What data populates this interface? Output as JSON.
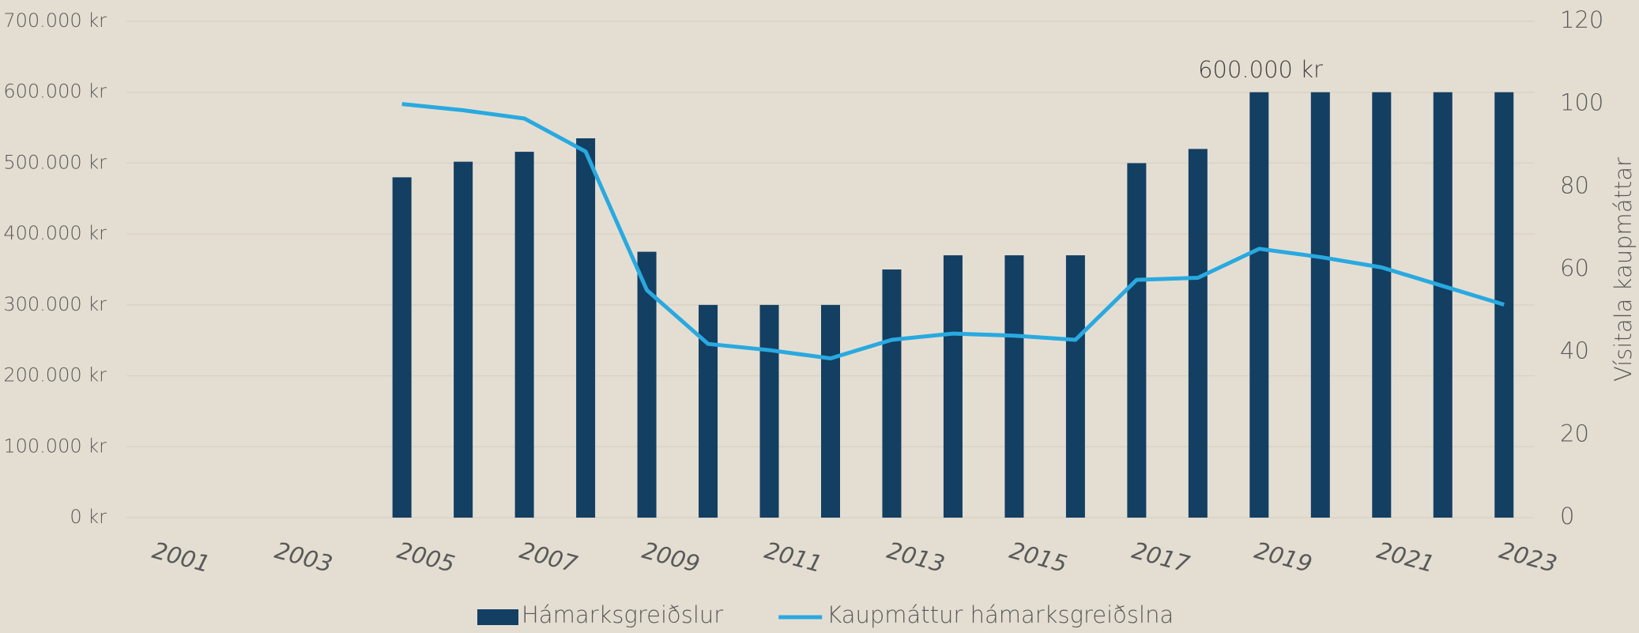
{
  "chart_data": {
    "type": "bar_line",
    "categories": [
      "2001",
      null,
      "2003",
      null,
      "2005",
      null,
      "2007",
      null,
      "2009",
      null,
      "2011",
      null,
      "2013",
      null,
      "2015",
      null,
      "2017",
      null,
      "2019",
      null,
      "2021",
      null,
      "2023"
    ],
    "series": [
      {
        "name": "Hámarksgreiðslur",
        "type": "bar",
        "color": "#133f63",
        "values": [
          null,
          null,
          null,
          null,
          480000,
          502000,
          516000,
          535000,
          375000,
          300000,
          300000,
          300000,
          350000,
          370000,
          370000,
          370000,
          500000,
          520000,
          600000,
          600000,
          600000,
          600000,
          600000
        ]
      },
      {
        "name": "Kaupmáttur hámarksgreiðslna",
        "type": "line",
        "axis": "y2",
        "color": "#29a9e0",
        "values": [
          null,
          null,
          null,
          null,
          100,
          98.5,
          96.5,
          88.5,
          55,
          42,
          40.5,
          38.5,
          43,
          44.5,
          44,
          43,
          57.5,
          58,
          65,
          63,
          60.5,
          56,
          51.5
        ]
      }
    ],
    "ylim": [
      0,
      700000
    ],
    "yticks": [
      {
        "value": 0,
        "label": "0 kr"
      },
      {
        "value": 100000,
        "label": "100.000 kr"
      },
      {
        "value": 200000,
        "label": "200.000 kr"
      },
      {
        "value": 300000,
        "label": "300.000 kr"
      },
      {
        "value": 400000,
        "label": "400.000 kr"
      },
      {
        "value": 500000,
        "label": "500.000 kr"
      },
      {
        "value": 600000,
        "label": "600.000 kr"
      },
      {
        "value": 700000,
        "label": "700.000 kr"
      }
    ],
    "y2lim": [
      0,
      120
    ],
    "y2ticks": [
      0,
      20,
      40,
      60,
      80,
      100,
      120
    ],
    "y2label": "Vísitala kaupmáttar",
    "annotation": "600.000 kr",
    "grid": true,
    "legend": "bottom"
  }
}
